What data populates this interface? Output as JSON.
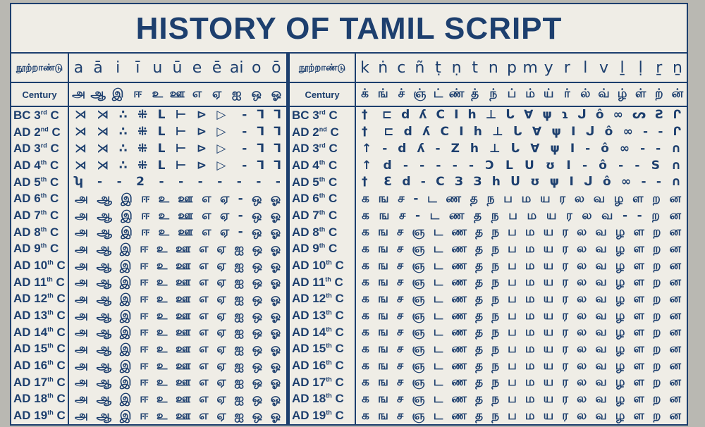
{
  "title": "HISTORY OF TAMIL SCRIPT",
  "header_label_tamil": "நூற்றாண்டு",
  "header_label_english": "Century",
  "vowels": {
    "latin": [
      "a",
      "ā",
      "i",
      "ī",
      "u",
      "ū",
      "e",
      "ē",
      "ai",
      "o",
      "ō"
    ],
    "tamil": [
      "அ",
      "ஆ",
      "இ",
      "ஈ",
      "உ",
      "ஊ",
      "எ",
      "ஏ",
      "ஐ",
      "ஒ",
      "ஓ"
    ]
  },
  "consonants": {
    "latin": [
      "k",
      "ṅ",
      "c",
      "ñ",
      "ṭ",
      "ṇ",
      "t",
      "n",
      "p",
      "m",
      "y",
      "r",
      "l",
      "v",
      "ḻ",
      "ḷ",
      "ṟ",
      "ṉ"
    ],
    "tamil": [
      "க்",
      "ங்",
      "ச்",
      "ஞ்",
      "ட்",
      "ண்",
      "த்",
      "ந்",
      "ப்",
      "ம்",
      "ய்",
      "ர்",
      "ல்",
      "வ்",
      "ழ்",
      "ள்",
      "ற்",
      "ன்"
    ]
  },
  "rows": [
    {
      "era": "BC",
      "num": "3",
      "suf": "rd",
      "v": "⋊ ⋊ ∴ ⁜ L ⊢ ⊳ ▷ - ⅂ ⅂",
      "c": "† ⊏ d ʎ C I h ⊥ ᒐ ∀ ψ ɿ ᒍ ô ∞ ᔕ Ƨ Ր"
    },
    {
      "era": "AD",
      "num": "2",
      "suf": "nd",
      "v": "⋊ ⋊ ∴ ⁜ L ⊢ ⊳ ▷ - ⅂ ⅂",
      "c": "† ⊏ d ʎ C I h ⊥ ᒐ ∀ ψ I ᒍ ô ∞ - - Ր"
    },
    {
      "era": "AD",
      "num": "3",
      "suf": "rd",
      "v": "⋊ ⋊ ∴ ⁜ L ⊢ ⊳ ▷ - ⅂ ⅂",
      "c": "↑ - d ʎ - Z h ⊥ ᒐ ∀ ψ I - ô ∞ - - ∩"
    },
    {
      "era": "AD",
      "num": "4",
      "suf": "th",
      "v": "⋊ ⋊ ∴ ⁜ L ⊢ ⊳ ▷ - ⅂ ⅂",
      "c": "↑ d - - - - - Ɔ L U ʊ I - ô - - S ∩"
    },
    {
      "era": "AD",
      "num": "5",
      "suf": "th",
      "v": "ʮ - - 2 - - - - - - -",
      "c": "† Ɛ d - C З З h ᑌ ʊ ψ I ᒍ ô ∞ - - ∩"
    },
    {
      "era": "AD",
      "num": "6",
      "suf": "th",
      "v": "அ ஆ இ ஈ உ ஊ எ ஏ - ஒ ஓ",
      "c": "க ங ச - ட ண த ந ப ம ய ர ல வ ழ ள ற ன"
    },
    {
      "era": "AD",
      "num": "7",
      "suf": "th",
      "v": "அ ஆ இ ஈ உ ஊ எ ஏ - ஒ ஓ",
      "c": "க ங ச - ட ண த ந ப ம ய ர ல வ - - ற ன"
    },
    {
      "era": "AD",
      "num": "8",
      "suf": "th",
      "v": "அ ஆ இ ஈ உ ஊ எ ஏ - ஒ ஓ",
      "c": "க ங ச ஞ ட ண த ந ப ம ய ர ல வ ழ ள ற ன"
    },
    {
      "era": "AD",
      "num": "9",
      "suf": "th",
      "v": "அ ஆ இ ஈ உ ஊ எ ஏ ஐ ஒ ஓ",
      "c": "க ங ச ஞ ட ண த ந ப ம ய ர ல வ ழ ள ற ன"
    },
    {
      "era": "AD",
      "num": "10",
      "suf": "th",
      "v": "அ ஆ இ ஈ உ ஊ எ ஏ ஐ ஒ ஓ",
      "c": "க ங ச ஞ ட ண த ந ப ம ய ர ல வ ழ ள ற ன"
    },
    {
      "era": "AD",
      "num": "11",
      "suf": "th",
      "v": "அ ஆ இ ஈ உ ஊ எ ஏ ஐ ஒ ஓ",
      "c": "க ங ச ஞ ட ண த ந ப ம ய ர ல வ ழ ள ற ன"
    },
    {
      "era": "AD",
      "num": "12",
      "suf": "th",
      "v": "அ ஆ இ ஈ உ ஊ எ ஏ ஐ ஒ ஓ",
      "c": "க ங ச ஞ ட ண த ந ப ம ய ர ல வ ழ ள ற ன"
    },
    {
      "era": "AD",
      "num": "13",
      "suf": "th",
      "v": "அ ஆ இ ஈ உ ஊ எ ஏ ஐ ஒ ஓ",
      "c": "க ங ச ஞ ட ண த ந ப ம ய ர ல வ ழ ள ற ன"
    },
    {
      "era": "AD",
      "num": "14",
      "suf": "th",
      "v": "அ ஆ இ ஈ உ ஊ எ ஏ ஐ ஒ ஓ",
      "c": "க ங ச ஞ ட ண த ந ப ம ய ர ல வ ழ ள ற ன"
    },
    {
      "era": "AD",
      "num": "15",
      "suf": "th",
      "v": "அ ஆ இ ஈ உ ஊ எ ஏ ஐ ஒ ஓ",
      "c": "க ங ச ஞ ட ண த ந ப ம ய ர ல வ ழ ள ற ன"
    },
    {
      "era": "AD",
      "num": "16",
      "suf": "th",
      "v": "அ ஆ இ ஈ உ ஊ எ ஏ ஐ ஒ ஓ",
      "c": "க ங ச ஞ ட ண த ந ப ம ய ர ல வ ழ ள ற ன"
    },
    {
      "era": "AD",
      "num": "17",
      "suf": "th",
      "v": "அ ஆ இ ஈ உ ஊ எ ஏ ஐ ஒ ஓ",
      "c": "க ங ச ஞ ட ண த ந ப ம ய ர ல வ ழ ள ற ன"
    },
    {
      "era": "AD",
      "num": "18",
      "suf": "th",
      "v": "அ ஆ இ ஈ உ ஊ எ ஏ ஐ ஒ ஓ",
      "c": "க ங ச ஞ ட ண த ந ப ம ய ர ல வ ழ ள ற ன"
    },
    {
      "era": "AD",
      "num": "19",
      "suf": "th",
      "v": "அ ஆ இ ஈ உ ஊ எ ஏ ஐ ஒ ஓ",
      "c": "க ங ச ஞ ட ண த ந ப ம ய ர ல வ ழ ள ற ன"
    }
  ],
  "colors": {
    "ink": "#1d3f6e",
    "board": "#efede6"
  }
}
